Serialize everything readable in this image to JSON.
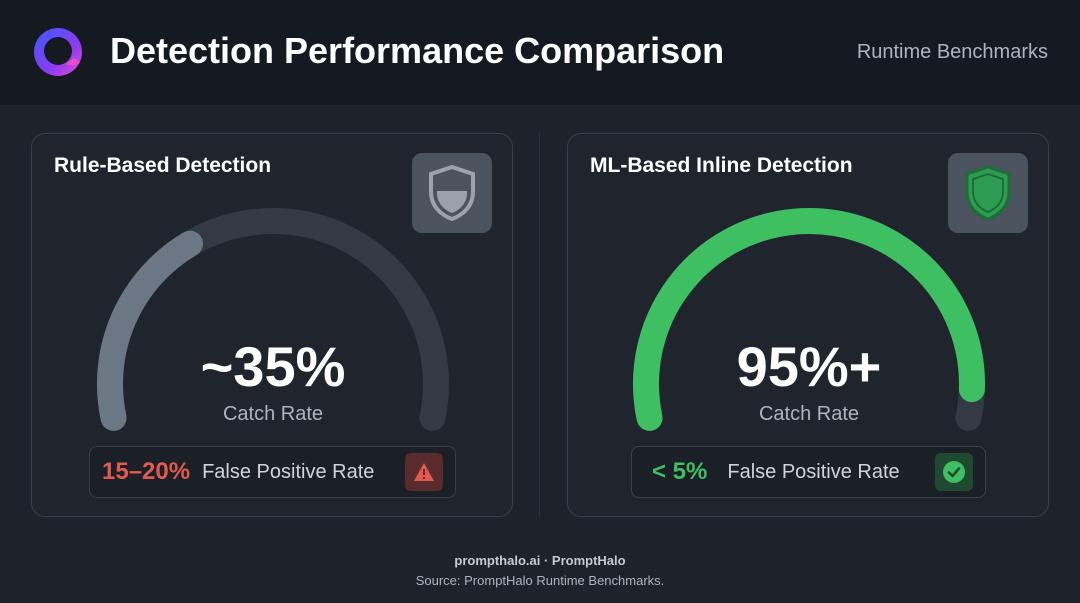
{
  "header": {
    "title": "Detection Performance Comparison",
    "subtitle": "Runtime Benchmarks",
    "logo_icon": "halo-ring-logo-icon"
  },
  "chart_data": [
    {
      "type": "gauge",
      "title": "Rule-Based Detection",
      "value": 35,
      "range": [
        0,
        100
      ],
      "value_label": "~35%",
      "metric_label": "Catch Rate",
      "fill_color": "#6b7785",
      "track_color": "#343a43",
      "icon": "half-shield-icon",
      "secondary": {
        "value_label": "15–20%",
        "label": "False Positive Rate",
        "status_icon": "warning-icon",
        "color": "#e05a52"
      }
    },
    {
      "type": "gauge",
      "title": "ML-Based Inline Detection",
      "value": 95,
      "range": [
        0,
        100
      ],
      "value_label": "95%+",
      "metric_label": "Catch Rate",
      "fill_color": "#3dbf62",
      "track_color": "#343a43",
      "icon": "green-shield-icon",
      "secondary": {
        "value_label": "< 5%",
        "label": "False Positive Rate",
        "status_icon": "check-circle-icon",
        "color": "#3dbf62"
      }
    }
  ],
  "footer": {
    "brand": "prompthalo.ai · PromptHalo",
    "source": "Source: PromptHalo Runtime Benchmarks."
  }
}
